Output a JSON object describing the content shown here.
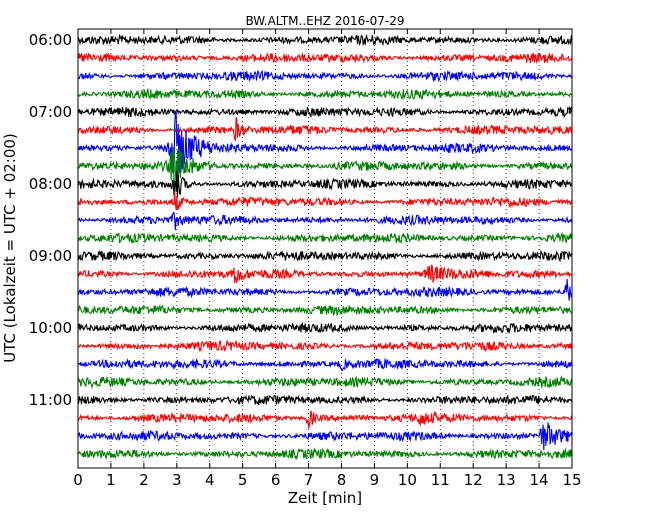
{
  "chart_data": {
    "type": "line",
    "title": "BW.ALTM..EHZ 2016-07-29",
    "xlabel": "Zeit  [min]",
    "ylabel": "UTC (Lokalzeit = UTC + 02:00)",
    "xlim": [
      0,
      15
    ],
    "x_ticks": [
      "0",
      "1",
      "2",
      "3",
      "4",
      "5",
      "6",
      "7",
      "8",
      "9",
      "10",
      "11",
      "12",
      "13",
      "14",
      "15"
    ],
    "y_ticks": [
      "06:00",
      "07:00",
      "08:00",
      "09:00",
      "10:00",
      "11:00"
    ],
    "grid": "vertical dotted",
    "trace_colors": [
      "#000000",
      "#ff0000",
      "#0000ff",
      "#008000"
    ],
    "traces_count": 24,
    "events": [
      {
        "trace": 6,
        "x_min": 2.95,
        "amplitude": 3.0,
        "width": 0.35
      },
      {
        "trace": 7,
        "x_min": 2.95,
        "amplitude": 1.6,
        "width": 0.3
      },
      {
        "trace": 8,
        "x_min": 2.95,
        "amplitude": 1.6,
        "width": 0.15
      },
      {
        "trace": 9,
        "x_min": 2.95,
        "amplitude": 0.8,
        "width": 0.15
      },
      {
        "trace": 10,
        "x_min": 2.95,
        "amplitude": 0.6,
        "width": 0.15
      },
      {
        "trace": 5,
        "x_min": 4.8,
        "amplitude": 0.9,
        "width": 0.12
      },
      {
        "trace": 13,
        "x_min": 4.8,
        "amplitude": 1.0,
        "width": 0.12
      },
      {
        "trace": 13,
        "x_min": 10.7,
        "amplitude": 0.6,
        "width": 0.3
      },
      {
        "trace": 14,
        "x_min": 14.85,
        "amplitude": 1.4,
        "width": 0.12
      },
      {
        "trace": 21,
        "x_min": 7.0,
        "amplitude": 1.0,
        "width": 0.12
      },
      {
        "trace": 21,
        "x_min": 10.4,
        "amplitude": 0.5,
        "width": 0.1
      },
      {
        "trace": 22,
        "x_min": 14.2,
        "amplitude": 1.2,
        "width": 0.35
      },
      {
        "trace": 18,
        "x_min": 8.0,
        "amplitude": 0.4,
        "width": 0.15
      }
    ]
  }
}
